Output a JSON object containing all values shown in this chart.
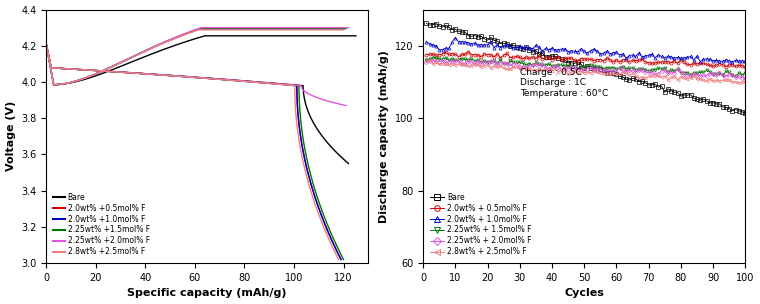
{
  "left_plot": {
    "xlabel": "Specific capacity (mAh/g)",
    "ylabel": "Voltage (V)",
    "xlim": [
      0,
      130
    ],
    "ylim": [
      3.0,
      4.4
    ],
    "xticks": [
      0,
      20,
      40,
      60,
      80,
      100,
      120
    ],
    "yticks": [
      3.0,
      3.2,
      3.4,
      3.6,
      3.8,
      4.0,
      4.2,
      4.4
    ],
    "series": [
      {
        "label": "Bare",
        "color": "#000000",
        "cap_c": 125,
        "cap_d": 122,
        "v_end_c": 4.255,
        "v_drop_d": 3.55
      },
      {
        "label": "2.0wt% +0.5mol% F",
        "color": "#cc0000",
        "cap_c": 120,
        "cap_d": 119,
        "v_end_c": 4.292,
        "v_drop_d": 3.02
      },
      {
        "label": "2.0wt% +1.0mol% F",
        "color": "#0000cc",
        "cap_c": 120,
        "cap_d": 119,
        "v_end_c": 4.292,
        "v_drop_d": 3.02
      },
      {
        "label": "2.25wt% +1.5mol% F",
        "color": "#007700",
        "cap_c": 121,
        "cap_d": 120,
        "v_end_c": 4.295,
        "v_drop_d": 3.02
      },
      {
        "label": "2.25wt% +2.0mol% F",
        "color": "#dd55dd",
        "cap_c": 122,
        "cap_d": 121,
        "v_end_c": 4.3,
        "v_drop_d": 3.87
      },
      {
        "label": "2.8wt% +2.5mol% F",
        "color": "#f08080",
        "cap_c": 120,
        "cap_d": 118,
        "v_end_c": 4.288,
        "v_drop_d": 3.02
      }
    ]
  },
  "right_plot": {
    "xlabel": "Cycles",
    "ylabel": "Discharge capacity (mAh/g)",
    "xlim": [
      0,
      100
    ],
    "ylim": [
      60,
      130
    ],
    "xticks": [
      0,
      10,
      20,
      30,
      40,
      50,
      60,
      70,
      80,
      90,
      100
    ],
    "yticks": [
      60,
      80,
      100,
      120
    ],
    "annotation": "Charge : 0.5C\nDischarge : 1C\nTemperature : 60°C",
    "series": [
      {
        "label": "Bare",
        "color": "#000000",
        "marker": "s",
        "start": 125.5,
        "end": 101.5
      },
      {
        "label": "2.0wt% + 0.5mol% F",
        "color": "#cc0000",
        "marker": "o",
        "start": 117.5,
        "end": 114.5
      },
      {
        "label": "2.0wt% + 1.0mol% F",
        "color": "#0000cc",
        "marker": "^",
        "start": 120.0,
        "end": 115.5
      },
      {
        "label": "2.25wt% + 1.5mol% F",
        "color": "#007700",
        "marker": "v",
        "start": 116.5,
        "end": 112.0
      },
      {
        "label": "2.25wt% + 2.0mol% F",
        "color": "#dd55dd",
        "marker": "D",
        "start": 116.0,
        "end": 111.5
      },
      {
        "label": "2.8wt% + 2.5mol% F",
        "color": "#f08080",
        "marker": "<",
        "start": 115.5,
        "end": 110.0
      }
    ]
  }
}
